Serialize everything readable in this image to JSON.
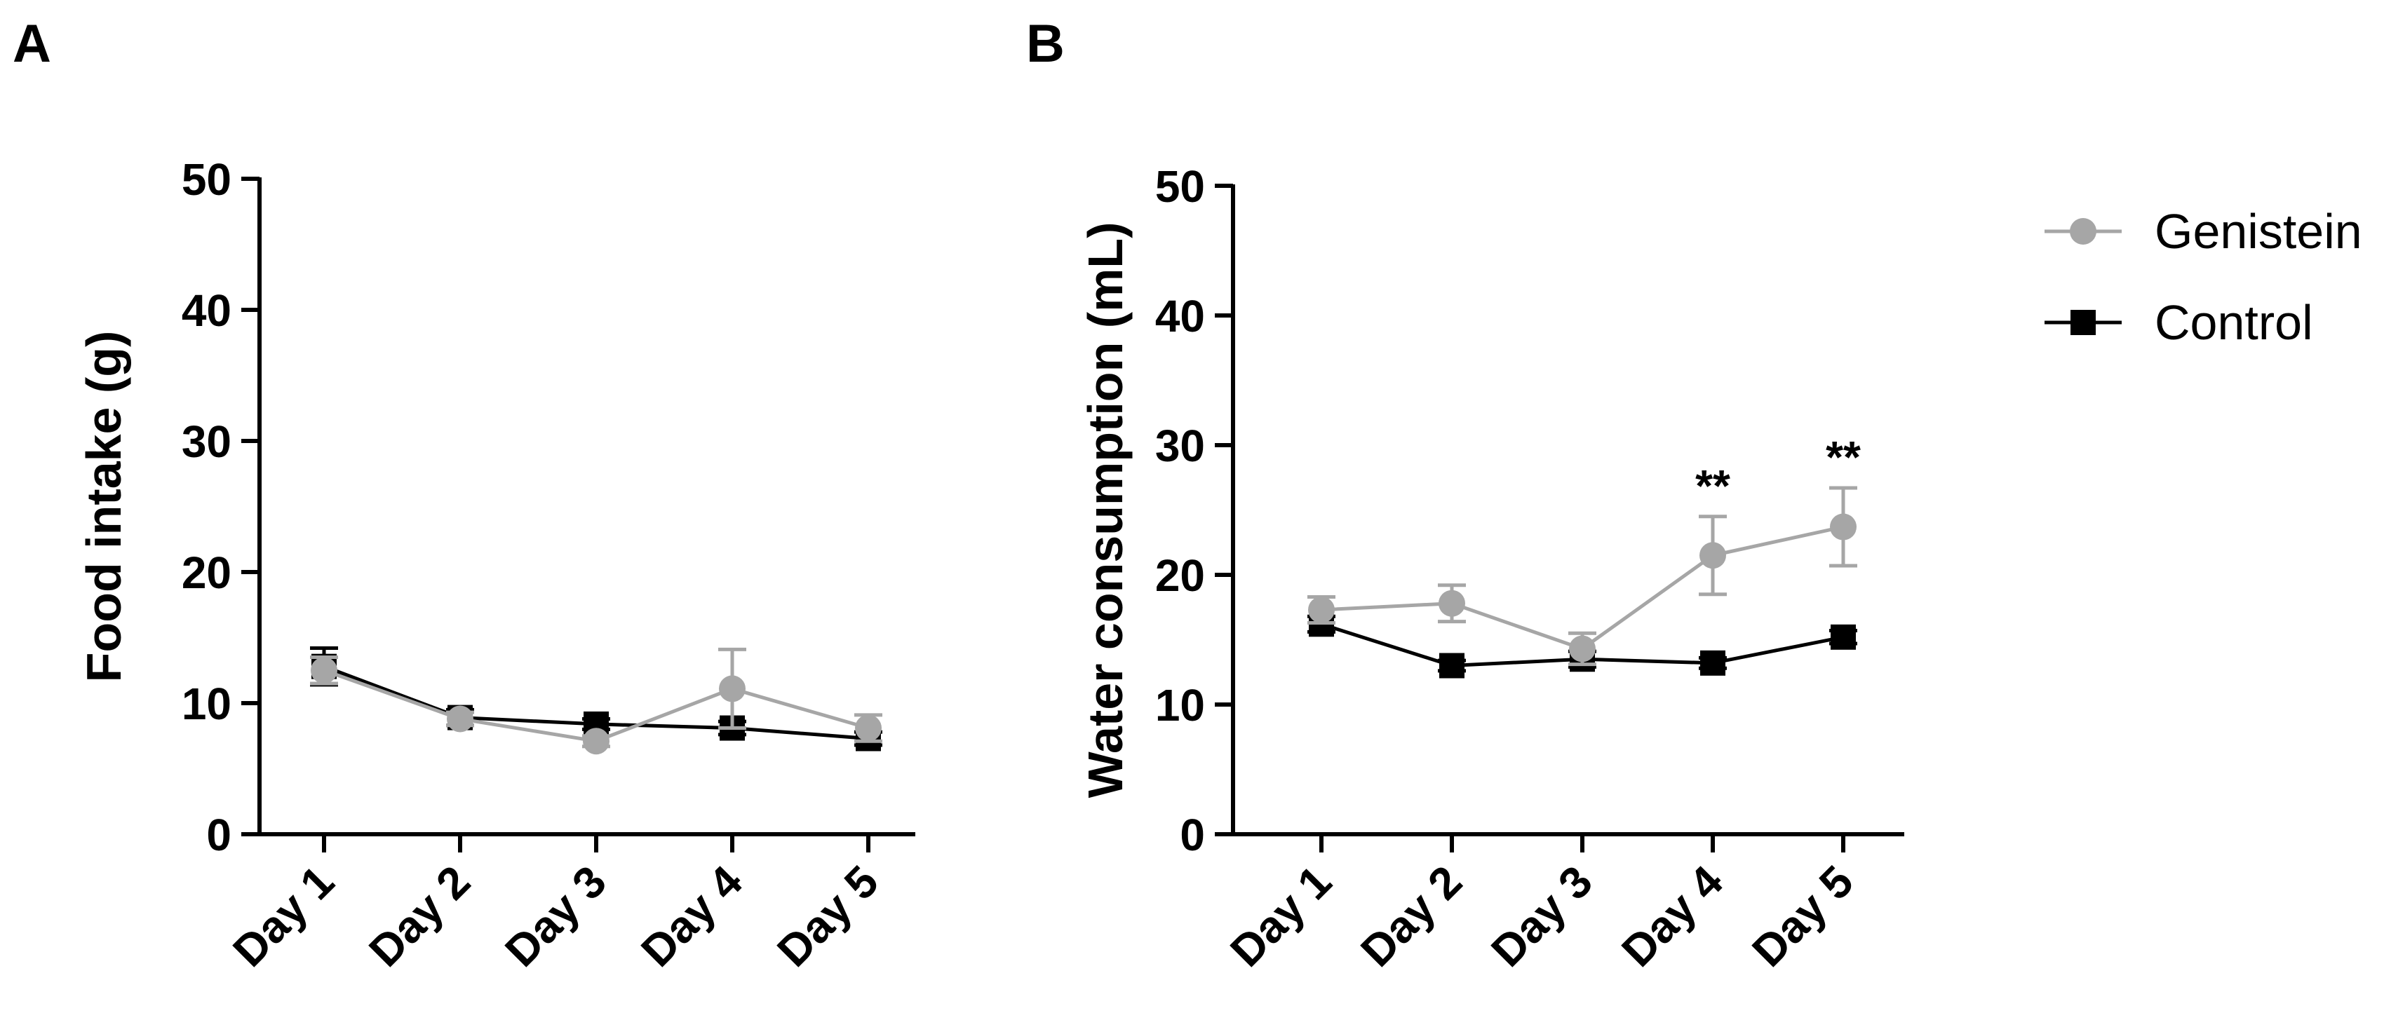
{
  "chart_data": [
    {
      "type": "line",
      "panel": "A",
      "title": "",
      "xlabel": "",
      "ylabel": "Food intake (g)",
      "ylim": [
        0,
        50
      ],
      "yticks": [
        0,
        10,
        20,
        30,
        40,
        50
      ],
      "grid": false,
      "categories": [
        "Day 1",
        "Day 2",
        "Day 3",
        "Day 4",
        "Day 5"
      ],
      "series": [
        {
          "name": "Control",
          "color": "#000000",
          "marker": "square",
          "values": [
            12.8,
            8.9,
            8.4,
            8.1,
            7.3
          ],
          "errors": [
            1.4,
            0.6,
            0.4,
            0.5,
            0.5
          ]
        },
        {
          "name": "Genistein",
          "color": "#a6a6a6",
          "marker": "circle",
          "values": [
            12.5,
            8.8,
            7.1,
            11.1,
            8.1
          ],
          "errors": [
            1.0,
            0.5,
            0.4,
            3.0,
            1.0
          ]
        }
      ],
      "annotations": []
    },
    {
      "type": "line",
      "panel": "B",
      "title": "",
      "xlabel": "",
      "ylabel": "Water consumption (mL)",
      "ylim": [
        0,
        50
      ],
      "yticks": [
        0,
        10,
        20,
        30,
        40,
        50
      ],
      "grid": false,
      "categories": [
        "Day 1",
        "Day 2",
        "Day 3",
        "Day 4",
        "Day 5"
      ],
      "series": [
        {
          "name": "Control",
          "color": "#000000",
          "marker": "square",
          "values": [
            16.2,
            13.0,
            13.5,
            13.2,
            15.2
          ],
          "errors": [
            0.6,
            0.4,
            0.6,
            0.4,
            0.5
          ]
        },
        {
          "name": "Genistein",
          "color": "#a6a6a6",
          "marker": "circle",
          "values": [
            17.3,
            17.8,
            14.3,
            21.5,
            23.7
          ],
          "errors": [
            1.0,
            1.4,
            1.2,
            3.0,
            3.0
          ]
        }
      ],
      "annotations": [
        {
          "category": "Day 4",
          "text": "**"
        },
        {
          "category": "Day 5",
          "text": "**"
        }
      ]
    }
  ],
  "legend": {
    "position": "right",
    "entries": [
      {
        "label": "Genistein",
        "color": "#a6a6a6",
        "marker": "circle"
      },
      {
        "label": "Control",
        "color": "#000000",
        "marker": "square"
      }
    ]
  }
}
